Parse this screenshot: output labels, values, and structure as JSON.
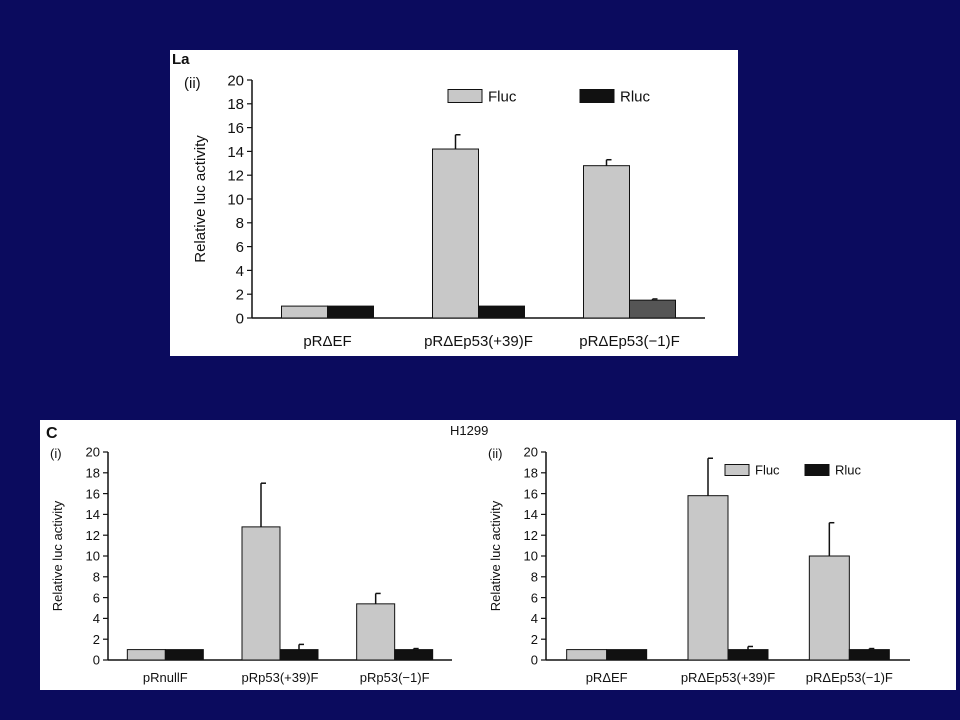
{
  "top_panel": {
    "label": "La",
    "sublabel": "(ii)"
  },
  "bottom_panel": {
    "label": "C",
    "cell_line": "H1299",
    "left_sublabel": "(i)",
    "right_sublabel": "(ii)"
  },
  "colors": {
    "background": "#0b0b5e",
    "fluc": "#c8c8c8",
    "rluc": "#111111",
    "rluc_top_third": "#555555"
  },
  "chart_data": [
    {
      "id": "top",
      "type": "bar",
      "title": "",
      "xlabel": "",
      "ylabel": "Relative luc activity",
      "ylim": [
        0,
        20
      ],
      "yticks": [
        0,
        2,
        4,
        6,
        8,
        10,
        12,
        14,
        16,
        18,
        20
      ],
      "categories": [
        "pRΔEF",
        "pRΔEp53(+39)F",
        "pRΔEp53(−1)F"
      ],
      "legend": "top-right",
      "series": [
        {
          "name": "Fluc",
          "values": [
            1,
            14.2,
            12.8
          ],
          "errors": [
            0,
            1.2,
            0.5
          ]
        },
        {
          "name": "Rluc",
          "values": [
            1,
            1,
            1.5
          ],
          "errors": [
            0,
            0,
            0.1
          ]
        }
      ]
    },
    {
      "id": "bottom-left",
      "type": "bar",
      "title": "",
      "xlabel": "",
      "ylabel": "Relative luc activity",
      "ylim": [
        0,
        20
      ],
      "yticks": [
        0,
        2,
        4,
        6,
        8,
        10,
        12,
        14,
        16,
        18,
        20
      ],
      "categories": [
        "pRnullF",
        "pRp53(+39)F",
        "pRp53(−1)F"
      ],
      "legend": "",
      "series": [
        {
          "name": "Fluc",
          "values": [
            1,
            12.8,
            5.4
          ],
          "errors": [
            0,
            4.2,
            1.0
          ]
        },
        {
          "name": "Rluc",
          "values": [
            1,
            1,
            1
          ],
          "errors": [
            0,
            0.5,
            0.1
          ]
        }
      ]
    },
    {
      "id": "bottom-right",
      "type": "bar",
      "title": "",
      "xlabel": "",
      "ylabel": "Relative luc activity",
      "ylim": [
        0,
        20
      ],
      "yticks": [
        0,
        2,
        4,
        6,
        8,
        10,
        12,
        14,
        16,
        18,
        20
      ],
      "categories": [
        "pRΔEF",
        "pRΔEp53(+39)F",
        "pRΔEp53(−1)F"
      ],
      "legend": "top-right",
      "series": [
        {
          "name": "Fluc",
          "values": [
            1,
            15.8,
            10
          ],
          "errors": [
            0,
            3.6,
            3.2
          ]
        },
        {
          "name": "Rluc",
          "values": [
            1,
            1,
            1
          ],
          "errors": [
            0,
            0.3,
            0.1
          ]
        }
      ]
    }
  ]
}
